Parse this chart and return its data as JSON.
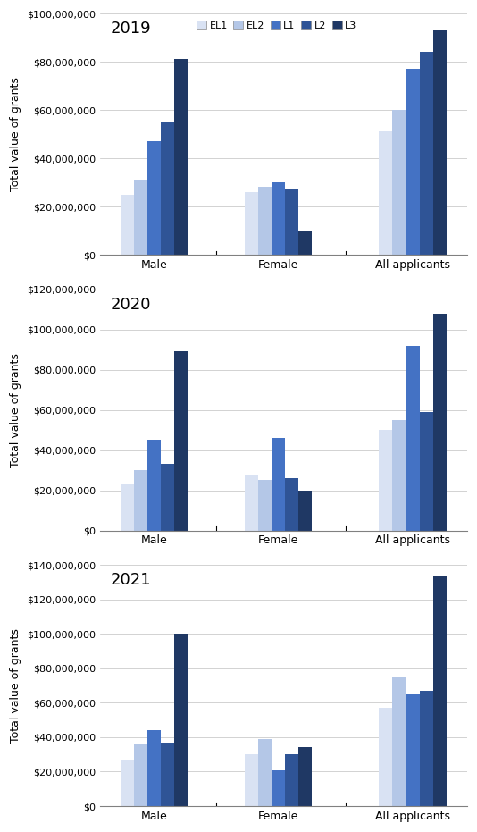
{
  "years": [
    "2019",
    "2020",
    "2021"
  ],
  "categories": [
    "Male",
    "Female",
    "All applicants"
  ],
  "series": [
    "EL1",
    "EL2",
    "L1",
    "L2",
    "L3"
  ],
  "colors": [
    "#d9e2f3",
    "#b4c7e7",
    "#4472c4",
    "#2f5496",
    "#1f3864"
  ],
  "values": {
    "2019": {
      "Male": [
        25000000,
        31000000,
        47000000,
        55000000,
        81000000
      ],
      "Female": [
        26000000,
        28000000,
        30000000,
        27000000,
        10000000
      ],
      "All applicants": [
        51000000,
        60000000,
        77000000,
        84000000,
        93000000
      ]
    },
    "2020": {
      "Male": [
        23000000,
        30000000,
        45000000,
        33000000,
        89000000
      ],
      "Female": [
        28000000,
        25000000,
        46000000,
        26000000,
        20000000
      ],
      "All applicants": [
        50000000,
        55000000,
        92000000,
        59000000,
        108000000
      ]
    },
    "2021": {
      "Male": [
        27000000,
        36000000,
        44000000,
        37000000,
        100000000
      ],
      "Female": [
        30000000,
        39000000,
        21000000,
        30000000,
        34000000
      ],
      "All applicants": [
        57000000,
        75000000,
        65000000,
        67000000,
        134000000
      ]
    }
  },
  "ylims": {
    "2019": [
      0,
      100000000
    ],
    "2020": [
      0,
      120000000
    ],
    "2021": [
      0,
      140000000
    ]
  },
  "ytick_steps": {
    "2019": 20000000,
    "2020": 20000000,
    "2021": 20000000
  },
  "ylabel": "Total value of grants",
  "background_color": "#ffffff"
}
